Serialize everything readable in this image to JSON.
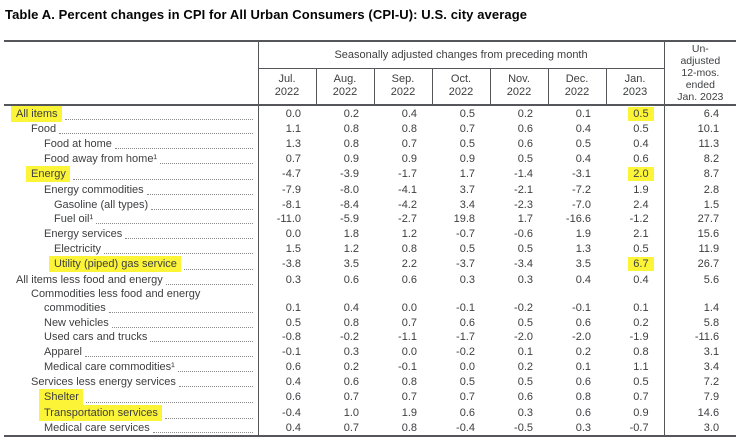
{
  "page_title": "Table A. Percent changes in CPI for All Urban Consumers (CPI-U): U.S. city average",
  "highlight_color": "#fcf437",
  "chart_data": {
    "type": "table",
    "title": "Table A. Percent changes in CPI for All Urban Consumers (CPI-U): U.S. city average",
    "spanner_header": "Seasonally adjusted changes from preceding month",
    "unadjusted_header": "Un-\nadjusted\n12-mos.\nended\nJan. 2023",
    "month_headers": [
      "Jul.\n2022",
      "Aug.\n2022",
      "Sep.\n2022",
      "Oct.\n2022",
      "Nov.\n2022",
      "Dec.\n2022",
      "Jan.\n2023"
    ],
    "rows": [
      {
        "label": "All items",
        "indent": 0,
        "label_highlighted": true,
        "values": [
          "0.0",
          "0.2",
          "0.4",
          "0.5",
          "0.2",
          "0.1",
          "0.5",
          "6.4"
        ],
        "highlighted_value_indexes": [
          6
        ]
      },
      {
        "label": "Food",
        "indent": 1,
        "label_highlighted": false,
        "values": [
          "1.1",
          "0.8",
          "0.8",
          "0.7",
          "0.6",
          "0.4",
          "0.5",
          "10.1"
        ],
        "highlighted_value_indexes": []
      },
      {
        "label": "Food at home",
        "indent": 2,
        "label_highlighted": false,
        "values": [
          "1.3",
          "0.8",
          "0.7",
          "0.5",
          "0.6",
          "0.5",
          "0.4",
          "11.3"
        ],
        "highlighted_value_indexes": []
      },
      {
        "label": "Food away from home¹",
        "indent": 2,
        "label_highlighted": false,
        "values": [
          "0.7",
          "0.9",
          "0.9",
          "0.9",
          "0.5",
          "0.4",
          "0.6",
          "8.2"
        ],
        "highlighted_value_indexes": []
      },
      {
        "label": "Energy",
        "indent": 1,
        "label_highlighted": true,
        "values": [
          "-4.7",
          "-3.9",
          "-1.7",
          "1.7",
          "-1.4",
          "-3.1",
          "2.0",
          "8.7"
        ],
        "highlighted_value_indexes": [
          6
        ]
      },
      {
        "label": "Energy commodities",
        "indent": 2,
        "label_highlighted": false,
        "values": [
          "-7.9",
          "-8.0",
          "-4.1",
          "3.7",
          "-2.1",
          "-7.2",
          "1.9",
          "2.8"
        ],
        "highlighted_value_indexes": []
      },
      {
        "label": "Gasoline (all types)",
        "indent": 3,
        "label_highlighted": false,
        "values": [
          "-8.1",
          "-8.4",
          "-4.2",
          "3.4",
          "-2.3",
          "-7.0",
          "2.4",
          "1.5"
        ],
        "highlighted_value_indexes": []
      },
      {
        "label": "Fuel oil¹",
        "indent": 3,
        "label_highlighted": false,
        "values": [
          "-11.0",
          "-5.9",
          "-2.7",
          "19.8",
          "1.7",
          "-16.6",
          "-1.2",
          "27.7"
        ],
        "highlighted_value_indexes": []
      },
      {
        "label": "Energy services",
        "indent": 2,
        "label_highlighted": false,
        "values": [
          "0.0",
          "1.8",
          "1.2",
          "-0.7",
          "-0.6",
          "1.9",
          "2.1",
          "15.6"
        ],
        "highlighted_value_indexes": []
      },
      {
        "label": "Electricity",
        "indent": 3,
        "label_highlighted": false,
        "values": [
          "1.5",
          "1.2",
          "0.8",
          "0.5",
          "0.5",
          "1.3",
          "0.5",
          "11.9"
        ],
        "highlighted_value_indexes": []
      },
      {
        "label": "Utility (piped) gas service",
        "indent": 3,
        "label_highlighted": true,
        "values": [
          "-3.8",
          "3.5",
          "2.2",
          "-3.7",
          "-3.4",
          "3.5",
          "6.7",
          "26.7"
        ],
        "highlighted_value_indexes": [
          6
        ]
      },
      {
        "label": "All items less food and energy",
        "indent": 0,
        "label_highlighted": false,
        "values": [
          "0.3",
          "0.6",
          "0.6",
          "0.3",
          "0.3",
          "0.4",
          "0.4",
          "5.6"
        ],
        "highlighted_value_indexes": []
      },
      {
        "label": "Commodities less food and energy",
        "label2": "commodities",
        "indent": 1,
        "label_highlighted": false,
        "values": [
          "0.1",
          "0.4",
          "0.0",
          "-0.1",
          "-0.2",
          "-0.1",
          "0.1",
          "1.4"
        ],
        "highlighted_value_indexes": []
      },
      {
        "label": "New vehicles",
        "indent": 2,
        "label_highlighted": false,
        "values": [
          "0.5",
          "0.8",
          "0.7",
          "0.6",
          "0.5",
          "0.6",
          "0.2",
          "5.8"
        ],
        "highlighted_value_indexes": []
      },
      {
        "label": "Used cars and trucks",
        "indent": 2,
        "label_highlighted": false,
        "values": [
          "-0.8",
          "-0.2",
          "-1.1",
          "-1.7",
          "-2.0",
          "-2.0",
          "-1.9",
          "-11.6"
        ],
        "highlighted_value_indexes": []
      },
      {
        "label": "Apparel",
        "indent": 2,
        "label_highlighted": false,
        "values": [
          "-0.1",
          "0.3",
          "0.0",
          "-0.2",
          "0.1",
          "0.2",
          "0.8",
          "3.1"
        ],
        "highlighted_value_indexes": []
      },
      {
        "label": "Medical care commodities¹",
        "indent": 2,
        "label_highlighted": false,
        "values": [
          "0.6",
          "0.2",
          "-0.1",
          "0.0",
          "0.2",
          "0.1",
          "1.1",
          "3.4"
        ],
        "highlighted_value_indexes": []
      },
      {
        "label": "Services less energy services",
        "indent": 1,
        "label_highlighted": false,
        "values": [
          "0.4",
          "0.6",
          "0.8",
          "0.5",
          "0.5",
          "0.6",
          "0.5",
          "7.2"
        ],
        "highlighted_value_indexes": []
      },
      {
        "label": "Shelter",
        "indent": 2,
        "label_highlighted": true,
        "values": [
          "0.6",
          "0.7",
          "0.7",
          "0.7",
          "0.6",
          "0.8",
          "0.7",
          "7.9"
        ],
        "highlighted_value_indexes": []
      },
      {
        "label": "Transportation services",
        "indent": 2,
        "label_highlighted": true,
        "values": [
          "-0.4",
          "1.0",
          "1.9",
          "0.6",
          "0.3",
          "0.6",
          "0.9",
          "14.6"
        ],
        "highlighted_value_indexes": []
      },
      {
        "label": "Medical care services",
        "indent": 2,
        "label_highlighted": false,
        "values": [
          "0.4",
          "0.7",
          "0.8",
          "-0.4",
          "-0.5",
          "0.3",
          "-0.7",
          "3.0"
        ],
        "highlighted_value_indexes": []
      }
    ]
  }
}
